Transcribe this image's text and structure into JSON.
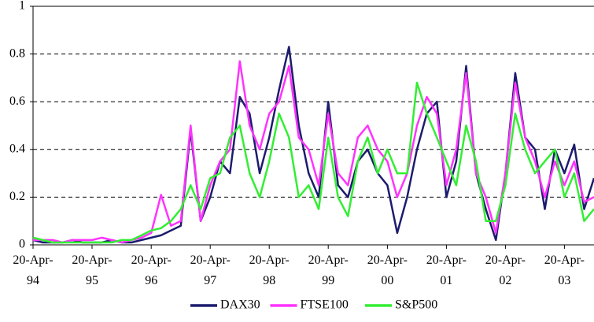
{
  "chart_data": {
    "type": "line",
    "x": [
      "1994-04-20",
      "1994-06-20",
      "1994-08-20",
      "1994-10-20",
      "1994-12-20",
      "1995-02-20",
      "1995-04-20",
      "1995-06-20",
      "1995-08-20",
      "1995-10-20",
      "1995-12-20",
      "1996-02-20",
      "1996-04-20",
      "1996-06-20",
      "1996-08-20",
      "1996-10-20",
      "1996-12-20",
      "1997-02-20",
      "1997-04-20",
      "1997-06-20",
      "1997-08-20",
      "1997-10-20",
      "1997-12-20",
      "1998-02-20",
      "1998-04-20",
      "1998-06-20",
      "1998-08-20",
      "1998-10-20",
      "1998-12-20",
      "1999-02-20",
      "1999-04-20",
      "1999-06-20",
      "1999-08-20",
      "1999-10-20",
      "1999-12-20",
      "2000-02-20",
      "2000-04-20",
      "2000-06-20",
      "2000-08-20",
      "2000-10-20",
      "2000-12-20",
      "2001-02-20",
      "2001-04-20",
      "2001-06-20",
      "2001-08-20",
      "2001-10-20",
      "2001-12-20",
      "2002-02-20",
      "2002-04-20",
      "2002-06-20",
      "2002-08-20",
      "2002-10-20",
      "2002-12-20",
      "2003-02-20",
      "2003-04-20",
      "2003-06-20",
      "2003-08-20",
      "2003-10-20"
    ],
    "series": [
      {
        "name": "DAX30",
        "color": "#1c1c6e",
        "values": [
          0.02,
          0.01,
          0.01,
          0.01,
          0.02,
          0.01,
          0.01,
          0.01,
          0.02,
          0.01,
          0.01,
          0.02,
          0.03,
          0.04,
          0.06,
          0.08,
          0.48,
          0.1,
          0.2,
          0.35,
          0.3,
          0.62,
          0.55,
          0.3,
          0.45,
          0.65,
          0.83,
          0.5,
          0.3,
          0.2,
          0.6,
          0.25,
          0.2,
          0.35,
          0.4,
          0.3,
          0.25,
          0.05,
          0.2,
          0.4,
          0.55,
          0.6,
          0.2,
          0.35,
          0.75,
          0.3,
          0.15,
          0.02,
          0.3,
          0.72,
          0.45,
          0.4,
          0.15,
          0.4,
          0.3,
          0.42,
          0.15,
          0.28
        ]
      },
      {
        "name": "FTSE100",
        "color": "#ff33ff",
        "values": [
          0.02,
          0.02,
          0.02,
          0.01,
          0.02,
          0.02,
          0.02,
          0.03,
          0.02,
          0.01,
          0.02,
          0.03,
          0.05,
          0.21,
          0.08,
          0.1,
          0.5,
          0.1,
          0.25,
          0.35,
          0.4,
          0.77,
          0.5,
          0.4,
          0.55,
          0.6,
          0.75,
          0.45,
          0.4,
          0.25,
          0.55,
          0.3,
          0.25,
          0.45,
          0.5,
          0.4,
          0.35,
          0.2,
          0.3,
          0.5,
          0.62,
          0.55,
          0.25,
          0.4,
          0.72,
          0.3,
          0.2,
          0.05,
          0.3,
          0.68,
          0.45,
          0.35,
          0.2,
          0.35,
          0.25,
          0.35,
          0.18,
          0.2
        ]
      },
      {
        "name": "S&P500",
        "color": "#33ee33",
        "values": [
          0.03,
          0.02,
          0.01,
          0.01,
          0.01,
          0.01,
          0.01,
          0.01,
          0.01,
          0.02,
          0.02,
          0.04,
          0.06,
          0.07,
          0.1,
          0.15,
          0.25,
          0.15,
          0.28,
          0.3,
          0.45,
          0.5,
          0.3,
          0.2,
          0.35,
          0.55,
          0.45,
          0.2,
          0.25,
          0.15,
          0.45,
          0.2,
          0.12,
          0.35,
          0.45,
          0.3,
          0.4,
          0.3,
          0.3,
          0.68,
          0.55,
          0.45,
          0.35,
          0.25,
          0.5,
          0.35,
          0.1,
          0.1,
          0.25,
          0.55,
          0.4,
          0.3,
          0.35,
          0.4,
          0.2,
          0.3,
          0.1,
          0.15
        ]
      }
    ],
    "xlim": [
      "1994-04-20",
      "2003-10-20"
    ],
    "xticks": [
      {
        "value": "1994-04-20",
        "label": "20-Apr-94"
      },
      {
        "value": "1995-04-20",
        "label": "20-Apr-95"
      },
      {
        "value": "1996-04-20",
        "label": "20-Apr-96"
      },
      {
        "value": "1997-04-20",
        "label": "20-Apr-97"
      },
      {
        "value": "1998-04-20",
        "label": "20-Apr-98"
      },
      {
        "value": "1999-04-20",
        "label": "20-Apr-99"
      },
      {
        "value": "2000-04-20",
        "label": "20-Apr-00"
      },
      {
        "value": "2001-04-20",
        "label": "20-Apr-01"
      },
      {
        "value": "2002-04-20",
        "label": "20-Apr-02"
      },
      {
        "value": "2003-04-20",
        "label": "20-Apr-03"
      }
    ],
    "ylim": [
      0,
      1
    ],
    "yticks": [
      0,
      0.2,
      0.4,
      0.6,
      0.8,
      1
    ],
    "grid": true,
    "legend": "bottom"
  }
}
